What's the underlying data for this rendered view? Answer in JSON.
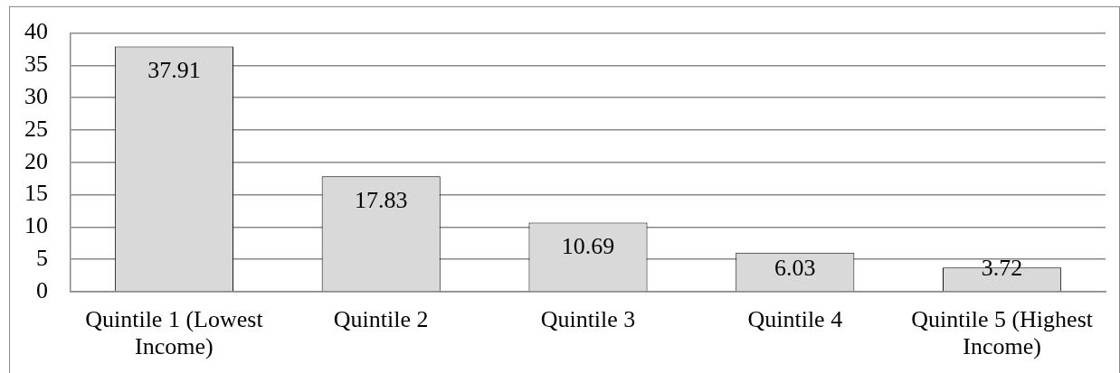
{
  "chart_data": {
    "type": "bar",
    "categories": [
      "Quintile 1 (Lowest Income)",
      "Quintile 2",
      "Quintile 3",
      "Quintile 4",
      "Quintile 5 (Highest Income)"
    ],
    "values": [
      37.91,
      17.83,
      10.69,
      6.03,
      3.72
    ],
    "color": "#d9d9d9",
    "ylim": [
      0,
      40
    ],
    "yticks": [
      0,
      5,
      10,
      15,
      20,
      25,
      30,
      35,
      40
    ],
    "grid": "y",
    "data_labels": true
  }
}
